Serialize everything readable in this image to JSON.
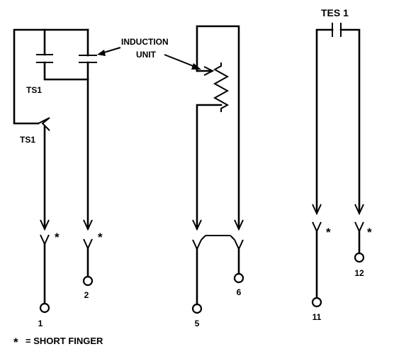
{
  "labels": {
    "induction_unit": "INDUCTION",
    "induction_unit_2": "UNIT",
    "ts1_capacitor": "TS1",
    "ts1_switch": "TS1",
    "tes1": "TES 1",
    "star": "*",
    "legend_star": "*",
    "legend_text": "=  SHORT FINGER"
  },
  "terminals": [
    "1",
    "2",
    "5",
    "6",
    "11",
    "12"
  ]
}
